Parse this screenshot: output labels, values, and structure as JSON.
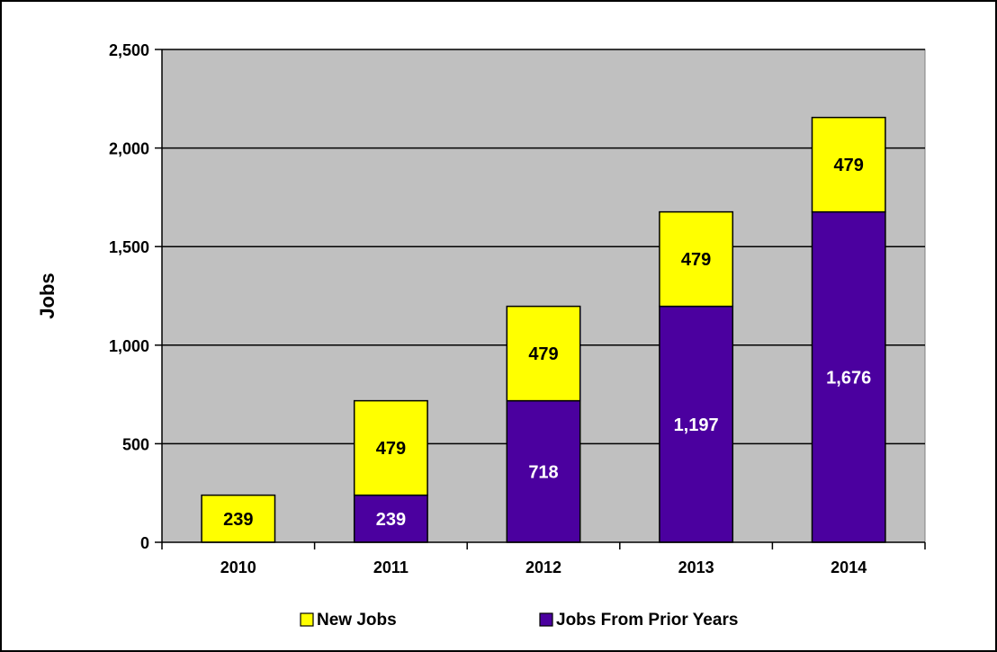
{
  "chart_data": {
    "type": "bar",
    "stacked": true,
    "categories": [
      "2010",
      "2011",
      "2012",
      "2013",
      "2014"
    ],
    "series": [
      {
        "name": "Jobs From Prior Years",
        "color": "#4B009F",
        "label_color": "#ffffff",
        "values": [
          0,
          239,
          718,
          1197,
          1676
        ],
        "labels": [
          "",
          "239",
          "718",
          "1,197",
          "1,676"
        ]
      },
      {
        "name": "New Jobs",
        "color": "#FFFF00",
        "label_color": "#000000",
        "values": [
          239,
          479,
          479,
          479,
          479
        ],
        "labels": [
          "239",
          "479",
          "479",
          "479",
          "479"
        ]
      }
    ],
    "legend_order": [
      "New Jobs",
      "Jobs From Prior Years"
    ],
    "legend_position": "bottom",
    "ylabel": "Jobs",
    "xlabel": "",
    "title": "",
    "ylim": [
      0,
      2500
    ],
    "yticks": [
      0,
      500,
      1000,
      1500,
      2000,
      2500
    ],
    "ytick_labels": [
      "0",
      "500",
      "1,000",
      "1,500",
      "2,000",
      "2,500"
    ],
    "grid": true,
    "plot_background": "#C0C0C0",
    "gridline_color": "#000000"
  }
}
